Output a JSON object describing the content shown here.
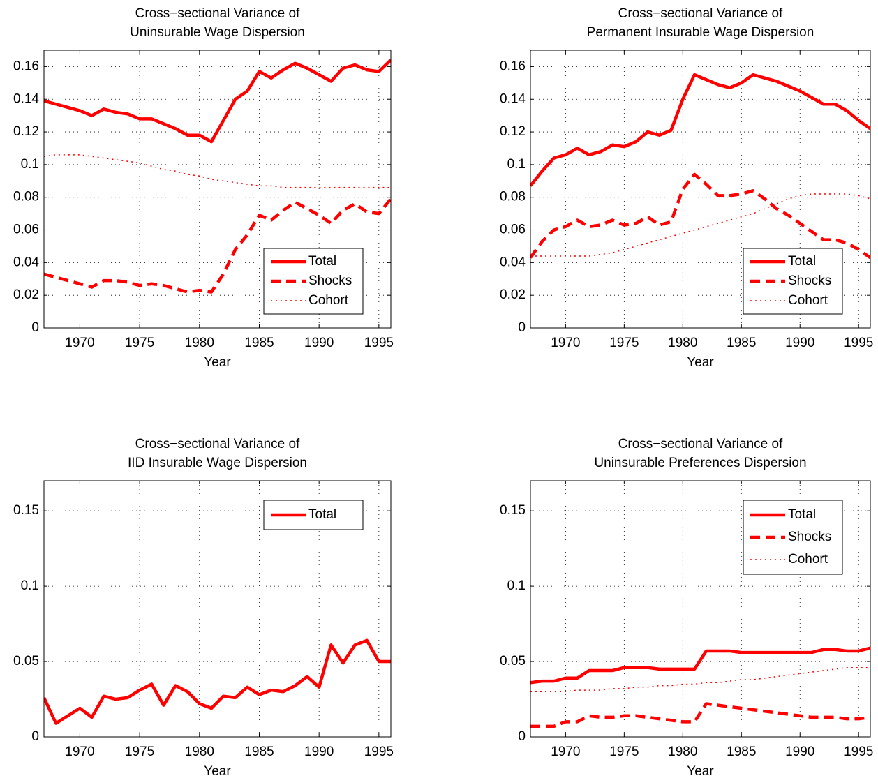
{
  "chart_data": [
    {
      "type": "line",
      "title": [
        "Cross−sectional Variance of",
        "Uninsurable Wage Dispersion"
      ],
      "x_label": "Year",
      "x": [
        1967,
        1968,
        1969,
        1970,
        1971,
        1972,
        1973,
        1974,
        1975,
        1976,
        1977,
        1978,
        1979,
        1980,
        1981,
        1982,
        1983,
        1984,
        1985,
        1986,
        1987,
        1988,
        1989,
        1990,
        1991,
        1992,
        1993,
        1994,
        1995,
        1996
      ],
      "xlim": [
        1967,
        1996
      ],
      "xticks": [
        1970,
        1975,
        1980,
        1985,
        1990,
        1995
      ],
      "ylim": [
        0,
        0.17
      ],
      "yticks": [
        0,
        0.02,
        0.04,
        0.06,
        0.08,
        0.1,
        0.12,
        0.14,
        0.16
      ],
      "grid": true,
      "legend": "lower right",
      "series": [
        {
          "name": "Total",
          "color": "#ff0000",
          "style": "solid",
          "values": [
            0.139,
            0.137,
            0.135,
            0.133,
            0.13,
            0.134,
            0.132,
            0.131,
            0.128,
            0.128,
            0.125,
            0.122,
            0.118,
            0.118,
            0.114,
            0.127,
            0.14,
            0.145,
            0.157,
            0.153,
            0.158,
            0.162,
            0.159,
            0.155,
            0.151,
            0.159,
            0.161,
            0.158,
            0.157,
            0.164
          ]
        },
        {
          "name": "Shocks",
          "color": "#ff0000",
          "style": "dashed",
          "values": [
            0.033,
            0.031,
            0.029,
            0.027,
            0.025,
            0.029,
            0.029,
            0.028,
            0.026,
            0.027,
            0.026,
            0.024,
            0.022,
            0.023,
            0.022,
            0.033,
            0.048,
            0.057,
            0.069,
            0.066,
            0.072,
            0.077,
            0.073,
            0.069,
            0.064,
            0.072,
            0.076,
            0.071,
            0.07,
            0.079
          ]
        },
        {
          "name": "Cohort",
          "color": "#ff0000",
          "style": "dotted",
          "values": [
            0.105,
            0.106,
            0.106,
            0.106,
            0.105,
            0.104,
            0.103,
            0.102,
            0.101,
            0.099,
            0.097,
            0.096,
            0.094,
            0.093,
            0.091,
            0.09,
            0.089,
            0.088,
            0.087,
            0.087,
            0.086,
            0.086,
            0.086,
            0.086,
            0.086,
            0.086,
            0.086,
            0.086,
            0.086,
            0.086
          ]
        }
      ]
    },
    {
      "type": "line",
      "title": [
        "Cross−sectional Variance of",
        "Permanent Insurable Wage Dispersion"
      ],
      "x_label": "Year",
      "x": [
        1967,
        1968,
        1969,
        1970,
        1971,
        1972,
        1973,
        1974,
        1975,
        1976,
        1977,
        1978,
        1979,
        1980,
        1981,
        1982,
        1983,
        1984,
        1985,
        1986,
        1987,
        1988,
        1989,
        1990,
        1991,
        1992,
        1993,
        1994,
        1995,
        1996
      ],
      "xlim": [
        1967,
        1996
      ],
      "xticks": [
        1970,
        1975,
        1980,
        1985,
        1990,
        1995
      ],
      "ylim": [
        0,
        0.17
      ],
      "yticks": [
        0,
        0.02,
        0.04,
        0.06,
        0.08,
        0.1,
        0.12,
        0.14,
        0.16
      ],
      "grid": true,
      "legend": "lower right",
      "series": [
        {
          "name": "Total",
          "color": "#ff0000",
          "style": "solid",
          "values": [
            0.087,
            0.096,
            0.104,
            0.106,
            0.11,
            0.106,
            0.108,
            0.112,
            0.111,
            0.114,
            0.12,
            0.118,
            0.121,
            0.14,
            0.155,
            0.152,
            0.149,
            0.147,
            0.15,
            0.155,
            0.153,
            0.151,
            0.148,
            0.145,
            0.141,
            0.137,
            0.137,
            0.133,
            0.127,
            0.122
          ]
        },
        {
          "name": "Shocks",
          "color": "#ff0000",
          "style": "dashed",
          "values": [
            0.043,
            0.053,
            0.06,
            0.062,
            0.066,
            0.062,
            0.063,
            0.066,
            0.063,
            0.064,
            0.068,
            0.063,
            0.065,
            0.085,
            0.094,
            0.088,
            0.081,
            0.081,
            0.082,
            0.084,
            0.079,
            0.073,
            0.069,
            0.064,
            0.059,
            0.054,
            0.054,
            0.052,
            0.048,
            0.043
          ]
        },
        {
          "name": "Cohort",
          "color": "#ff0000",
          "style": "dotted",
          "values": [
            0.044,
            0.044,
            0.044,
            0.044,
            0.044,
            0.044,
            0.045,
            0.046,
            0.048,
            0.05,
            0.052,
            0.054,
            0.056,
            0.058,
            0.06,
            0.062,
            0.064,
            0.066,
            0.068,
            0.07,
            0.073,
            0.076,
            0.079,
            0.081,
            0.082,
            0.082,
            0.082,
            0.082,
            0.081,
            0.079
          ]
        }
      ]
    },
    {
      "type": "line",
      "title": [
        "Cross−sectional Variance of",
        "IID Insurable Wage Dispersion"
      ],
      "x_label": "Year",
      "x": [
        1967,
        1968,
        1969,
        1970,
        1971,
        1972,
        1973,
        1974,
        1975,
        1976,
        1977,
        1978,
        1979,
        1980,
        1981,
        1982,
        1983,
        1984,
        1985,
        1986,
        1987,
        1988,
        1989,
        1990,
        1991,
        1992,
        1993,
        1994,
        1995,
        1996
      ],
      "xlim": [
        1967,
        1996
      ],
      "xticks": [
        1970,
        1975,
        1980,
        1985,
        1990,
        1995
      ],
      "ylim": [
        0,
        0.17
      ],
      "yticks": [
        0,
        0.05,
        0.1,
        0.15
      ],
      "grid": true,
      "legend": "upper right",
      "series": [
        {
          "name": "Total",
          "color": "#ff0000",
          "style": "solid",
          "values": [
            0.026,
            0.009,
            0.014,
            0.019,
            0.013,
            0.027,
            0.025,
            0.026,
            0.031,
            0.035,
            0.021,
            0.034,
            0.03,
            0.022,
            0.019,
            0.027,
            0.026,
            0.033,
            0.028,
            0.031,
            0.03,
            0.034,
            0.04,
            0.033,
            0.061,
            0.049,
            0.061,
            0.064,
            0.05,
            0.05
          ]
        }
      ]
    },
    {
      "type": "line",
      "title": [
        "Cross−sectional Variance of",
        "Uninsurable Preferences Dispersion"
      ],
      "x_label": "Year",
      "x": [
        1967,
        1968,
        1969,
        1970,
        1971,
        1972,
        1973,
        1974,
        1975,
        1976,
        1977,
        1978,
        1979,
        1980,
        1981,
        1982,
        1983,
        1984,
        1985,
        1986,
        1987,
        1988,
        1989,
        1990,
        1991,
        1992,
        1993,
        1994,
        1995,
        1996
      ],
      "xlim": [
        1967,
        1996
      ],
      "xticks": [
        1970,
        1975,
        1980,
        1985,
        1990,
        1995
      ],
      "ylim": [
        0,
        0.17
      ],
      "yticks": [
        0,
        0.05,
        0.1,
        0.15
      ],
      "grid": true,
      "legend": "upper right",
      "series": [
        {
          "name": "Total",
          "color": "#ff0000",
          "style": "solid",
          "values": [
            0.036,
            0.037,
            0.037,
            0.039,
            0.039,
            0.044,
            0.044,
            0.044,
            0.046,
            0.046,
            0.046,
            0.045,
            0.045,
            0.045,
            0.045,
            0.057,
            0.057,
            0.057,
            0.056,
            0.056,
            0.056,
            0.056,
            0.056,
            0.056,
            0.056,
            0.058,
            0.058,
            0.057,
            0.057,
            0.059
          ]
        },
        {
          "name": "Shocks",
          "color": "#ff0000",
          "style": "dashed",
          "values": [
            0.007,
            0.007,
            0.007,
            0.01,
            0.01,
            0.014,
            0.013,
            0.013,
            0.014,
            0.014,
            0.013,
            0.012,
            0.011,
            0.01,
            0.01,
            0.022,
            0.021,
            0.02,
            0.019,
            0.018,
            0.017,
            0.016,
            0.015,
            0.014,
            0.013,
            0.013,
            0.013,
            0.012,
            0.012,
            0.013
          ]
        },
        {
          "name": "Cohort",
          "color": "#ff0000",
          "style": "dotted",
          "values": [
            0.03,
            0.03,
            0.03,
            0.03,
            0.031,
            0.031,
            0.031,
            0.032,
            0.032,
            0.033,
            0.033,
            0.034,
            0.034,
            0.035,
            0.035,
            0.036,
            0.036,
            0.037,
            0.038,
            0.038,
            0.039,
            0.04,
            0.041,
            0.042,
            0.043,
            0.044,
            0.045,
            0.046,
            0.046,
            0.046
          ]
        }
      ]
    }
  ]
}
